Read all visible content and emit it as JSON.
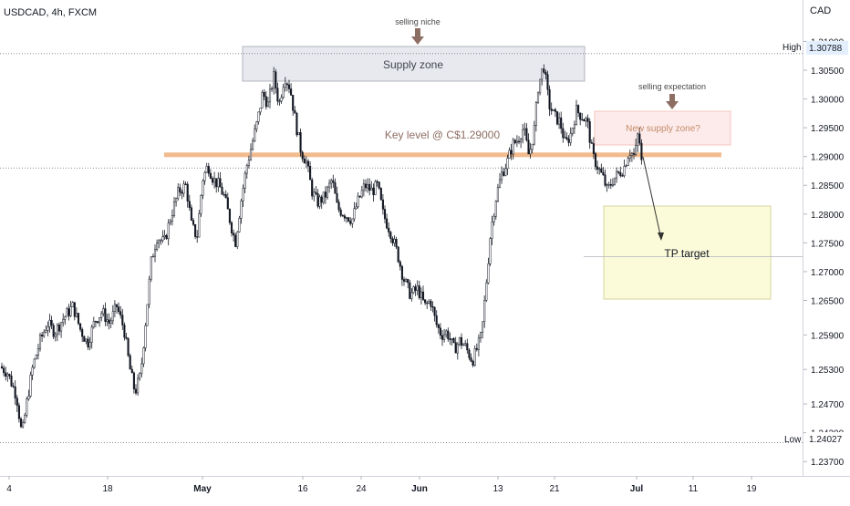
{
  "header": {
    "symbol_title": "USDCAD, 4h, FXCM"
  },
  "axis": {
    "currency": "CAD"
  },
  "chart_data": {
    "type": "candlestick",
    "title": "USDCAD, 4h, FXCM",
    "ylim": [
      1.2345,
      1.3172
    ],
    "y_ticks": [
      "1.31000",
      "1.30500",
      "1.30000",
      "1.29500",
      "1.29000",
      "1.28500",
      "1.28000",
      "1.27500",
      "1.27000",
      "1.26500",
      "1.25900",
      "1.25300",
      "1.24700",
      "1.24200",
      "1.23700"
    ],
    "x_ticks": [
      "4",
      "18",
      "May",
      "16",
      "24",
      "Jun",
      "13",
      "21",
      "Jul",
      "11",
      "19"
    ],
    "high": {
      "label": "High",
      "value": "1.30788"
    },
    "low": {
      "label": "Low",
      "value": "1.24027"
    },
    "current_price": 1.288,
    "key_level": {
      "label": "Key level @ C$1.29000",
      "value": 1.2903,
      "color": "#f0b482"
    },
    "annotations": {
      "supply_zone": "Supply zone",
      "selling_niche": "selling niche",
      "selling_expectation": "selling expectation",
      "new_supply_zone": "New supply zone?",
      "tp_target": "TP target"
    },
    "path": [
      [
        0,
        1.2535
      ],
      [
        8,
        1.2525
      ],
      [
        18,
        1.2485
      ],
      [
        24,
        1.2415
      ],
      [
        30,
        1.248
      ],
      [
        36,
        1.2535
      ],
      [
        44,
        1.258
      ],
      [
        52,
        1.261
      ],
      [
        60,
        1.2595
      ],
      [
        70,
        1.262
      ],
      [
        80,
        1.264
      ],
      [
        88,
        1.26
      ],
      [
        96,
        1.2575
      ],
      [
        104,
        1.2615
      ],
      [
        112,
        1.263
      ],
      [
        120,
        1.261
      ],
      [
        128,
        1.264
      ],
      [
        136,
        1.26
      ],
      [
        142,
        1.2535
      ],
      [
        148,
        1.249
      ],
      [
        154,
        1.252
      ],
      [
        160,
        1.262
      ],
      [
        166,
        1.272
      ],
      [
        172,
        1.276
      ],
      [
        180,
        1.275
      ],
      [
        188,
        1.28
      ],
      [
        196,
        1.284
      ],
      [
        204,
        1.285
      ],
      [
        210,
        1.278
      ],
      [
        216,
        1.276
      ],
      [
        222,
        1.286
      ],
      [
        228,
        1.2885
      ],
      [
        234,
        1.286
      ],
      [
        240,
        1.285
      ],
      [
        246,
        1.283
      ],
      [
        252,
        1.279
      ],
      [
        258,
        1.275
      ],
      [
        264,
        1.282
      ],
      [
        270,
        1.288
      ],
      [
        276,
        1.292
      ],
      [
        282,
        1.296
      ],
      [
        288,
        1.301
      ],
      [
        294,
        1.299
      ],
      [
        300,
        1.304
      ],
      [
        306,
        1.299
      ],
      [
        312,
        1.304
      ],
      [
        318,
        1.302
      ],
      [
        324,
        1.296
      ],
      [
        330,
        1.291
      ],
      [
        336,
        1.289
      ],
      [
        342,
        1.284
      ],
      [
        348,
        1.282
      ],
      [
        356,
        1.283
      ],
      [
        364,
        1.286
      ],
      [
        370,
        1.281
      ],
      [
        378,
        1.28
      ],
      [
        386,
        1.279
      ],
      [
        392,
        1.282
      ],
      [
        400,
        1.285
      ],
      [
        408,
        1.284
      ],
      [
        414,
        1.285
      ],
      [
        420,
        1.28
      ],
      [
        428,
        1.277
      ],
      [
        436,
        1.273
      ],
      [
        442,
        1.269
      ],
      [
        450,
        1.266
      ],
      [
        458,
        1.267
      ],
      [
        466,
        1.264
      ],
      [
        472,
        1.265
      ],
      [
        478,
        1.261
      ],
      [
        484,
        1.259
      ],
      [
        490,
        1.2595
      ],
      [
        498,
        1.2565
      ],
      [
        504,
        1.258
      ],
      [
        510,
        1.257
      ],
      [
        518,
        1.2545
      ],
      [
        524,
        1.257
      ],
      [
        528,
        1.259
      ],
      [
        532,
        1.266
      ],
      [
        538,
        1.277
      ],
      [
        544,
        1.283
      ],
      [
        550,
        1.287
      ],
      [
        556,
        1.289
      ],
      [
        562,
        1.292
      ],
      [
        568,
        1.293
      ],
      [
        574,
        1.295
      ],
      [
        580,
        1.29
      ],
      [
        586,
        1.295
      ],
      [
        590,
        1.302
      ],
      [
        596,
        1.306
      ],
      [
        602,
        1.299
      ],
      [
        608,
        1.297
      ],
      [
        614,
        1.296
      ],
      [
        620,
        1.292
      ],
      [
        626,
        1.294
      ],
      [
        632,
        1.298
      ],
      [
        638,
        1.297
      ],
      [
        644,
        1.296
      ],
      [
        650,
        1.29
      ],
      [
        656,
        1.288
      ],
      [
        662,
        1.286
      ],
      [
        666,
        1.284
      ],
      [
        672,
        1.286
      ],
      [
        678,
        1.287
      ],
      [
        684,
        1.288
      ],
      [
        690,
        1.291
      ],
      [
        696,
        1.29
      ],
      [
        700,
        1.2945
      ],
      [
        704,
        1.288
      ]
    ]
  }
}
